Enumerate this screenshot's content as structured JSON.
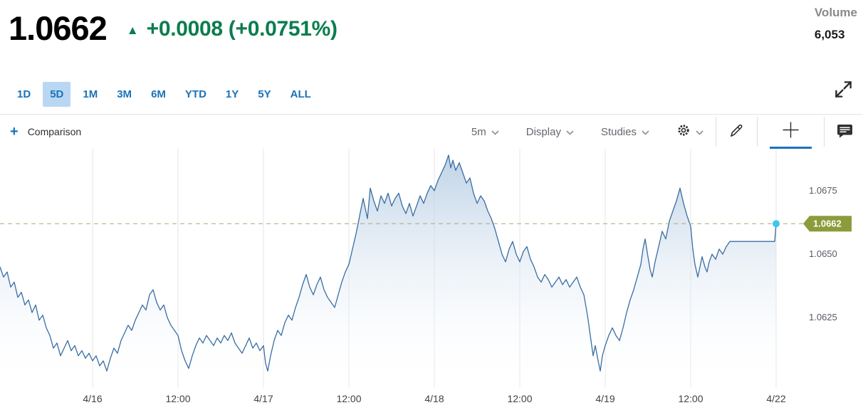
{
  "header": {
    "price": "1.0662",
    "up_arrow": "▲",
    "change": "+0.0008 (+0.0751%)",
    "volume_label": "Volume",
    "volume_value": "6,053"
  },
  "range_tabs": {
    "items": [
      {
        "label": "1D",
        "selected": false
      },
      {
        "label": "5D",
        "selected": true
      },
      {
        "label": "1M",
        "selected": false
      },
      {
        "label": "3M",
        "selected": false
      },
      {
        "label": "6M",
        "selected": false
      },
      {
        "label": "YTD",
        "selected": false
      },
      {
        "label": "1Y",
        "selected": false
      },
      {
        "label": "5Y",
        "selected": false
      },
      {
        "label": "ALL",
        "selected": false
      }
    ]
  },
  "toolbar": {
    "plus": "+",
    "comparison_label": "Comparison",
    "interval_label": "5m",
    "display_label": "Display",
    "studies_label": "Studies"
  },
  "colors": {
    "up_green": "#0a7d4e",
    "tab_blue": "#1a72b8",
    "tab_selected_bg": "#b9d7f3",
    "line_blue": "#3a6da4",
    "fill_blue": "#a9c4de",
    "dashed_line": "#b5ae83",
    "price_tag_bg": "#8b9c3a",
    "dot_cyan": "#3fc6ee",
    "grid": "#e4e6e9",
    "crosshair_underline": "#1a73c0"
  },
  "chart_data": {
    "type": "area",
    "title": "",
    "xlabel": "",
    "ylabel": "",
    "x_unit": "hours from chart start (5-minute intraday series, 5D range)",
    "ylim": [
      1.0599,
      1.06915
    ],
    "last_price": 1.0662,
    "last_price_label": "1.0662",
    "x_ticks": [
      {
        "t": 13,
        "label": "4/16"
      },
      {
        "t": 25,
        "label": "12:00"
      },
      {
        "t": 37,
        "label": "4/17"
      },
      {
        "t": 49,
        "label": "12:00"
      },
      {
        "t": 61,
        "label": "4/18"
      },
      {
        "t": 73,
        "label": "12:00"
      },
      {
        "t": 85,
        "label": "4/19"
      },
      {
        "t": 97,
        "label": "12:00"
      },
      {
        "t": 109,
        "label": "4/22"
      }
    ],
    "y_ticks": [
      {
        "v": 1.0675,
        "label": "1.0675"
      },
      {
        "v": 1.065,
        "label": "1.0650"
      },
      {
        "v": 1.0625,
        "label": "1.0625"
      }
    ],
    "points": [
      [
        0,
        1.0645
      ],
      [
        0.5,
        1.0641
      ],
      [
        1,
        1.0643
      ],
      [
        1.5,
        1.0637
      ],
      [
        2,
        1.0639
      ],
      [
        2.5,
        1.0633
      ],
      [
        3,
        1.0635
      ],
      [
        3.5,
        1.063
      ],
      [
        4,
        1.0632
      ],
      [
        4.5,
        1.0627
      ],
      [
        5,
        1.063
      ],
      [
        5.5,
        1.0624
      ],
      [
        6,
        1.0626
      ],
      [
        6.5,
        1.0621
      ],
      [
        7,
        1.0618
      ],
      [
        7.5,
        1.0613
      ],
      [
        8,
        1.0615
      ],
      [
        8.5,
        1.061
      ],
      [
        9,
        1.0613
      ],
      [
        9.5,
        1.0616
      ],
      [
        10,
        1.0612
      ],
      [
        10.5,
        1.0614
      ],
      [
        11,
        1.061
      ],
      [
        11.5,
        1.0612
      ],
      [
        12,
        1.0609
      ],
      [
        12.5,
        1.0611
      ],
      [
        13,
        1.0608
      ],
      [
        13.5,
        1.061
      ],
      [
        14,
        1.0606
      ],
      [
        14.5,
        1.0608
      ],
      [
        15,
        1.0604
      ],
      [
        15.5,
        1.0609
      ],
      [
        16,
        1.0613
      ],
      [
        16.5,
        1.0611
      ],
      [
        17,
        1.0616
      ],
      [
        17.5,
        1.0619
      ],
      [
        18,
        1.0622
      ],
      [
        18.5,
        1.062
      ],
      [
        19,
        1.0624
      ],
      [
        19.5,
        1.0627
      ],
      [
        20,
        1.063
      ],
      [
        20.5,
        1.0628
      ],
      [
        21,
        1.0634
      ],
      [
        21.5,
        1.0636
      ],
      [
        22,
        1.0631
      ],
      [
        22.5,
        1.0628
      ],
      [
        23,
        1.063
      ],
      [
        23.5,
        1.0625
      ],
      [
        24,
        1.0622
      ],
      [
        24.5,
        1.062
      ],
      [
        25,
        1.0618
      ],
      [
        25.5,
        1.0612
      ],
      [
        26,
        1.0608
      ],
      [
        26.5,
        1.0605
      ],
      [
        27,
        1.061
      ],
      [
        27.5,
        1.0614
      ],
      [
        28,
        1.0617
      ],
      [
        28.5,
        1.0615
      ],
      [
        29,
        1.0618
      ],
      [
        29.5,
        1.0616
      ],
      [
        30,
        1.0614
      ],
      [
        30.5,
        1.0617
      ],
      [
        31,
        1.0615
      ],
      [
        31.5,
        1.0618
      ],
      [
        32,
        1.0616
      ],
      [
        32.5,
        1.0619
      ],
      [
        33,
        1.0615
      ],
      [
        33.5,
        1.0613
      ],
      [
        34,
        1.0611
      ],
      [
        34.5,
        1.0614
      ],
      [
        35,
        1.0617
      ],
      [
        35.5,
        1.0613
      ],
      [
        36,
        1.0615
      ],
      [
        36.5,
        1.0612
      ],
      [
        37,
        1.0614
      ],
      [
        37.3,
        1.0607
      ],
      [
        37.6,
        1.0604
      ],
      [
        38,
        1.061
      ],
      [
        38.5,
        1.0616
      ],
      [
        39,
        1.062
      ],
      [
        39.5,
        1.0618
      ],
      [
        40,
        1.0623
      ],
      [
        40.5,
        1.0626
      ],
      [
        41,
        1.0624
      ],
      [
        41.5,
        1.0629
      ],
      [
        42,
        1.0633
      ],
      [
        42.5,
        1.0638
      ],
      [
        43,
        1.0642
      ],
      [
        43.5,
        1.0637
      ],
      [
        44,
        1.0634
      ],
      [
        44.5,
        1.0638
      ],
      [
        45,
        1.0641
      ],
      [
        45.5,
        1.0636
      ],
      [
        46,
        1.0633
      ],
      [
        46.5,
        1.0631
      ],
      [
        47,
        1.0629
      ],
      [
        47.5,
        1.0634
      ],
      [
        48,
        1.0639
      ],
      [
        48.5,
        1.0643
      ],
      [
        49,
        1.0646
      ],
      [
        49.5,
        1.0652
      ],
      [
        50,
        1.0658
      ],
      [
        50.5,
        1.0665
      ],
      [
        51,
        1.0672
      ],
      [
        51.3,
        1.0668
      ],
      [
        51.6,
        1.0664
      ],
      [
        52,
        1.0676
      ],
      [
        52.5,
        1.0671
      ],
      [
        53,
        1.0667
      ],
      [
        53.5,
        1.0673
      ],
      [
        54,
        1.067
      ],
      [
        54.5,
        1.0674
      ],
      [
        55,
        1.0669
      ],
      [
        55.5,
        1.0672
      ],
      [
        56,
        1.0674
      ],
      [
        56.5,
        1.0669
      ],
      [
        57,
        1.0666
      ],
      [
        57.5,
        1.067
      ],
      [
        58,
        1.0665
      ],
      [
        58.5,
        1.0669
      ],
      [
        59,
        1.0673
      ],
      [
        59.5,
        1.067
      ],
      [
        60,
        1.0674
      ],
      [
        60.5,
        1.0677
      ],
      [
        61,
        1.0675
      ],
      [
        61.5,
        1.0679
      ],
      [
        62,
        1.0682
      ],
      [
        62.5,
        1.0685
      ],
      [
        63,
        1.0689
      ],
      [
        63.3,
        1.0684
      ],
      [
        63.6,
        1.0687
      ],
      [
        64,
        1.0683
      ],
      [
        64.5,
        1.0686
      ],
      [
        65,
        1.0682
      ],
      [
        65.5,
        1.0678
      ],
      [
        66,
        1.068
      ],
      [
        66.5,
        1.0674
      ],
      [
        67,
        1.067
      ],
      [
        67.5,
        1.0673
      ],
      [
        68,
        1.0671
      ],
      [
        68.5,
        1.0667
      ],
      [
        69,
        1.0664
      ],
      [
        69.5,
        1.066
      ],
      [
        70,
        1.0655
      ],
      [
        70.5,
        1.065
      ],
      [
        71,
        1.0647
      ],
      [
        71.5,
        1.0652
      ],
      [
        72,
        1.0655
      ],
      [
        72.5,
        1.065
      ],
      [
        73,
        1.0647
      ],
      [
        73.5,
        1.0651
      ],
      [
        74,
        1.0653
      ],
      [
        74.5,
        1.0648
      ],
      [
        75,
        1.0645
      ],
      [
        75.5,
        1.0641
      ],
      [
        76,
        1.0639
      ],
      [
        76.5,
        1.0642
      ],
      [
        77,
        1.064
      ],
      [
        77.5,
        1.0637
      ],
      [
        78,
        1.0639
      ],
      [
        78.5,
        1.0641
      ],
      [
        79,
        1.0638
      ],
      [
        79.5,
        1.064
      ],
      [
        80,
        1.0637
      ],
      [
        80.5,
        1.0639
      ],
      [
        81,
        1.0641
      ],
      [
        81.5,
        1.0637
      ],
      [
        82,
        1.0634
      ],
      [
        82.5,
        1.0626
      ],
      [
        83,
        1.0616
      ],
      [
        83.3,
        1.061
      ],
      [
        83.6,
        1.0614
      ],
      [
        84,
        1.0608
      ],
      [
        84.3,
        1.0604
      ],
      [
        84.6,
        1.061
      ],
      [
        85,
        1.0614
      ],
      [
        85.5,
        1.0618
      ],
      [
        86,
        1.0621
      ],
      [
        86.5,
        1.0618
      ],
      [
        87,
        1.0616
      ],
      [
        87.5,
        1.0621
      ],
      [
        88,
        1.0627
      ],
      [
        88.5,
        1.0632
      ],
      [
        89,
        1.0636
      ],
      [
        89.5,
        1.0641
      ],
      [
        90,
        1.0646
      ],
      [
        90.3,
        1.0652
      ],
      [
        90.6,
        1.0656
      ],
      [
        91,
        1.0649
      ],
      [
        91.3,
        1.0644
      ],
      [
        91.6,
        1.0641
      ],
      [
        92,
        1.0647
      ],
      [
        92.5,
        1.0653
      ],
      [
        93,
        1.0659
      ],
      [
        93.5,
        1.0656
      ],
      [
        94,
        1.0663
      ],
      [
        94.5,
        1.0667
      ],
      [
        95,
        1.0671
      ],
      [
        95.5,
        1.0676
      ],
      [
        96,
        1.067
      ],
      [
        96.5,
        1.0665
      ],
      [
        97,
        1.0661
      ],
      [
        97.3,
        1.0652
      ],
      [
        97.6,
        1.0646
      ],
      [
        98,
        1.0641
      ],
      [
        98.3,
        1.0645
      ],
      [
        98.6,
        1.0649
      ],
      [
        99,
        1.0645
      ],
      [
        99.3,
        1.0643
      ],
      [
        99.6,
        1.0647
      ],
      [
        100,
        1.065
      ],
      [
        100.5,
        1.0648
      ],
      [
        101,
        1.0652
      ],
      [
        101.5,
        1.065
      ],
      [
        102,
        1.0653
      ],
      [
        102.5,
        1.0655
      ],
      [
        103,
        1.0655
      ],
      [
        108.8,
        1.0655
      ],
      [
        109,
        1.0662
      ]
    ],
    "grid": "vertical-only",
    "legend": "none"
  }
}
